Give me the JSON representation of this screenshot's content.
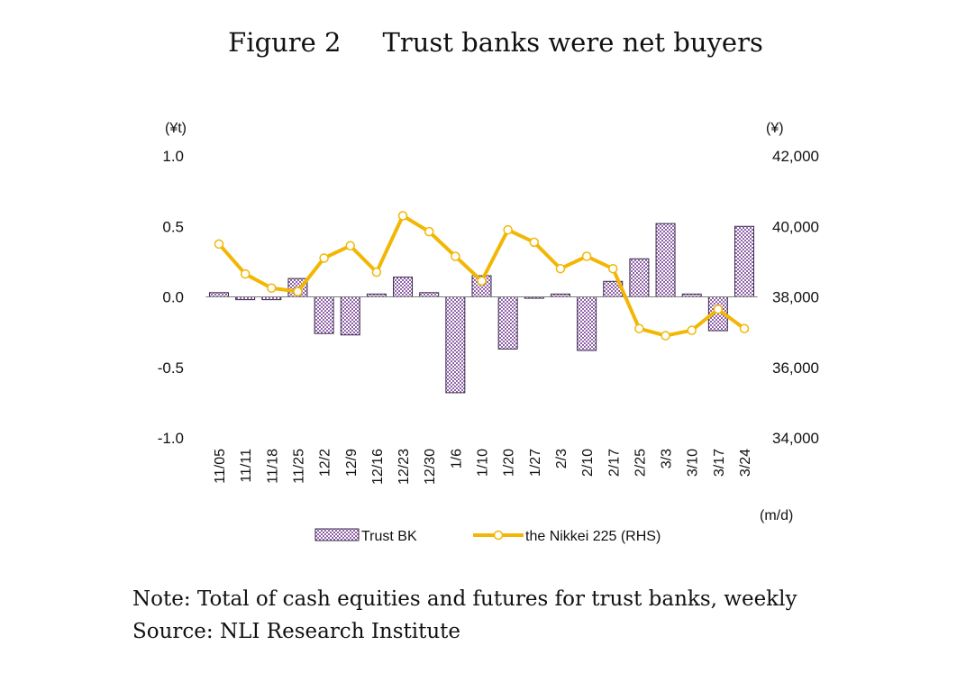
{
  "figure_label": "Figure 2",
  "note": "Note: Total of cash equities and futures for trust banks, weekly",
  "source": "Source: NLI Research Institute",
  "colors": {
    "bar_fill": "#8f63a8",
    "bar_edge": "#3a2a4a",
    "line": "#f2b705",
    "axis": "#7f7f7f"
  },
  "chart_data": {
    "type": "bar",
    "title": "Trust banks were net buyers",
    "categories": [
      "11/05",
      "11/11",
      "11/18",
      "11/25",
      "12/2",
      "12/9",
      "12/16",
      "12/23",
      "12/30",
      "1/6",
      "1/10",
      "1/20",
      "1/27",
      "2/3",
      "2/10",
      "2/17",
      "2/25",
      "3/3",
      "3/10",
      "3/17",
      "3/24"
    ],
    "x_unit": "(m/d)",
    "left_axis": {
      "unit": "(¥t)",
      "ylim": [
        -1.0,
        1.0
      ],
      "ticks": [
        "1.0",
        "0.5",
        "0.0",
        "-0.5",
        "-1.0"
      ]
    },
    "right_axis": {
      "unit": "(¥)",
      "ylim": [
        34000,
        42000
      ],
      "ticks": [
        "42,000",
        "40,000",
        "38,000",
        "36,000",
        "34,000"
      ]
    },
    "series": [
      {
        "name": "Trust BK",
        "type": "bar",
        "axis": "left",
        "values": [
          0.03,
          -0.02,
          -0.02,
          0.13,
          -0.26,
          -0.27,
          0.02,
          0.14,
          0.03,
          -0.68,
          0.15,
          -0.37,
          -0.01,
          0.02,
          -0.38,
          0.11,
          0.27,
          0.52,
          0.02,
          -0.24,
          0.5
        ]
      },
      {
        "name": "the Nikkei 225 (RHS)",
        "type": "line",
        "axis": "right",
        "values": [
          39500,
          38650,
          38250,
          38150,
          39100,
          39450,
          38700,
          40300,
          39850,
          39150,
          38450,
          39900,
          39550,
          38800,
          39150,
          38800,
          37100,
          36900,
          37050,
          37650,
          37100
        ]
      }
    ],
    "legend_position": "bottom",
    "grid": false
  }
}
